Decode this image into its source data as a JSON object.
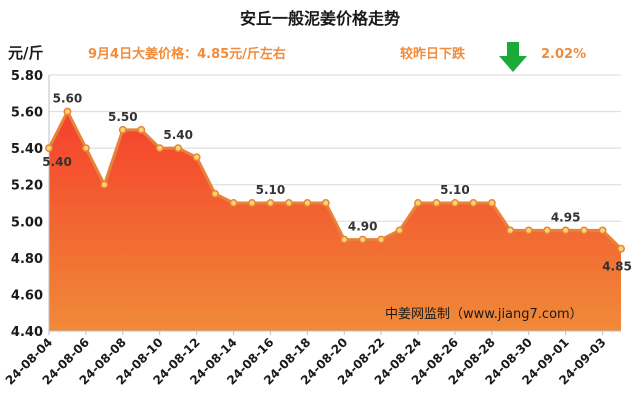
{
  "chart_data": {
    "type": "area",
    "title": "安丘一般泥姜价格走势",
    "subtitle": "9月4日大姜价格：4.85元/斤左右",
    "change_label": "较昨日下跌",
    "change_value": "2.02%",
    "ylabel": "元/斤",
    "watermark": "中姜网监制（www.jiang7.com）",
    "ylim": [
      4.4,
      5.8
    ],
    "yticks": [
      "4.40",
      "4.60",
      "4.80",
      "5.00",
      "5.20",
      "5.40",
      "5.60",
      "5.80"
    ],
    "grid": true,
    "x": [
      "24-08-04",
      "24-08-05",
      "24-08-06",
      "24-08-07",
      "24-08-08",
      "24-08-09",
      "24-08-10",
      "24-08-11",
      "24-08-12",
      "24-08-13",
      "24-08-14",
      "24-08-15",
      "24-08-16",
      "24-08-17",
      "24-08-18",
      "24-08-19",
      "24-08-20",
      "24-08-21",
      "24-08-22",
      "24-08-23",
      "24-08-24",
      "24-08-25",
      "24-08-26",
      "24-08-27",
      "24-08-28",
      "24-08-29",
      "24-08-30",
      "24-08-31",
      "24-09-01",
      "24-09-02",
      "24-09-03",
      "24-09-04"
    ],
    "xtick_labels": [
      "24-08-04",
      "24-08-06",
      "24-08-08",
      "24-08-10",
      "24-08-12",
      "24-08-14",
      "24-08-16",
      "24-08-18",
      "24-08-20",
      "24-08-22",
      "24-08-24",
      "24-08-26",
      "24-08-28",
      "24-08-30",
      "24-09-01",
      "24-09-03"
    ],
    "values": [
      5.4,
      5.6,
      5.4,
      5.2,
      5.5,
      5.5,
      5.4,
      5.4,
      5.35,
      5.15,
      5.1,
      5.1,
      5.1,
      5.1,
      5.1,
      5.1,
      4.9,
      4.9,
      4.9,
      4.95,
      5.1,
      5.1,
      5.1,
      5.1,
      5.1,
      4.95,
      4.95,
      4.95,
      4.95,
      4.95,
      4.95,
      4.85
    ],
    "data_labels": [
      {
        "index": 1,
        "text": "5.60"
      },
      {
        "index": 0,
        "text": "5.40"
      },
      {
        "index": 4,
        "text": "5.50"
      },
      {
        "index": 7,
        "text": "5.40"
      },
      {
        "index": 12,
        "text": "5.10"
      },
      {
        "index": 17,
        "text": "4.90"
      },
      {
        "index": 22,
        "text": "5.10"
      },
      {
        "index": 28,
        "text": "4.95"
      },
      {
        "index": 31,
        "text": "4.85"
      }
    ],
    "colors": {
      "line": "#e8823a",
      "marker_fill": "#ffd36b",
      "area_top": "#f5402c",
      "area_bottom": "#f08a38",
      "title": "#1a1a1a",
      "accent": "#f08c3c",
      "arrow": "#1aaa3a",
      "grid": "#d9d9d9"
    }
  }
}
